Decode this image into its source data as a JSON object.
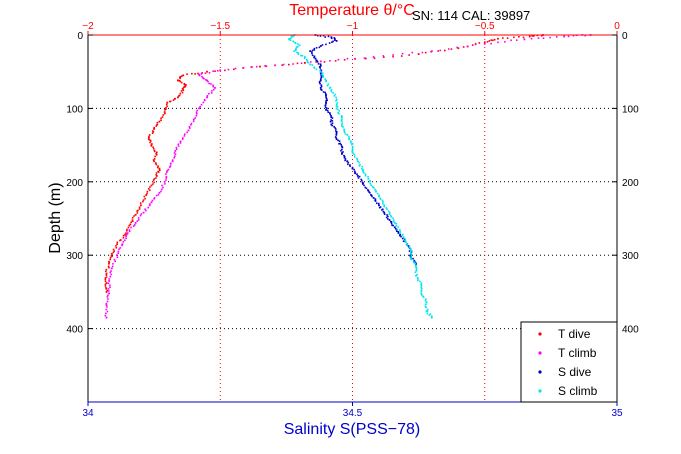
{
  "chart_data": {
    "type": "scatter",
    "header": "SN: 114  CAL: 39897",
    "top_axis": {
      "label": "Temperature θ/°C",
      "range": [
        -2,
        0
      ],
      "ticks": [
        -2,
        -1.5,
        -1,
        -0.5,
        0
      ],
      "tick_labels": [
        "−2",
        "−1.5",
        "−1",
        "−0.5",
        "0"
      ],
      "color": "#ff0000"
    },
    "bottom_axis": {
      "label": "Salinity S(PSS−78)",
      "range": [
        34,
        35
      ],
      "ticks": [
        34,
        34.5,
        35
      ],
      "tick_labels": [
        "34",
        "34.5",
        "35"
      ],
      "color": "#0000cc"
    },
    "y_axis": {
      "label": "Depth (m)",
      "range": [
        0,
        500
      ],
      "ticks": [
        0,
        100,
        200,
        300,
        400
      ],
      "tick_labels": [
        "0",
        "100",
        "200",
        "300",
        "400"
      ],
      "reversed": true
    },
    "grid": true,
    "legend_position": "bottom-right",
    "series": [
      {
        "name": "T dive",
        "axis": "temperature",
        "color": "#ff0000",
        "points": [
          [
            -0.28,
            0
          ],
          [
            -0.33,
            2
          ],
          [
            -0.45,
            5
          ],
          [
            -0.5,
            10
          ],
          [
            -0.6,
            18
          ],
          [
            -0.75,
            26
          ],
          [
            -0.95,
            32
          ],
          [
            -1.18,
            38
          ],
          [
            -1.35,
            43
          ],
          [
            -1.55,
            50
          ],
          [
            -1.64,
            55
          ],
          [
            -1.66,
            62
          ],
          [
            -1.63,
            68
          ],
          [
            -1.64,
            75
          ],
          [
            -1.66,
            85
          ],
          [
            -1.7,
            92
          ],
          [
            -1.71,
            105
          ],
          [
            -1.73,
            118
          ],
          [
            -1.75,
            128
          ],
          [
            -1.77,
            140
          ],
          [
            -1.76,
            150
          ],
          [
            -1.74,
            160
          ],
          [
            -1.75,
            172
          ],
          [
            -1.73,
            182
          ],
          [
            -1.74,
            192
          ],
          [
            -1.76,
            205
          ],
          [
            -1.78,
            218
          ],
          [
            -1.8,
            232
          ],
          [
            -1.82,
            245
          ],
          [
            -1.84,
            258
          ],
          [
            -1.86,
            272
          ],
          [
            -1.89,
            285
          ],
          [
            -1.91,
            298
          ],
          [
            -1.92,
            310
          ],
          [
            -1.93,
            325
          ],
          [
            -1.93,
            338
          ],
          [
            -1.93,
            350
          ]
        ]
      },
      {
        "name": "T climb",
        "axis": "temperature",
        "color": "#ff00ff",
        "points": [
          [
            -0.1,
            0
          ],
          [
            -0.2,
            2
          ],
          [
            -0.35,
            6
          ],
          [
            -0.5,
            12
          ],
          [
            -0.7,
            22
          ],
          [
            -0.92,
            30
          ],
          [
            -1.12,
            36
          ],
          [
            -1.33,
            42
          ],
          [
            -1.5,
            48
          ],
          [
            -1.58,
            54
          ],
          [
            -1.55,
            62
          ],
          [
            -1.52,
            72
          ],
          [
            -1.55,
            85
          ],
          [
            -1.58,
            100
          ],
          [
            -1.6,
            115
          ],
          [
            -1.62,
            130
          ],
          [
            -1.65,
            145
          ],
          [
            -1.67,
            158
          ],
          [
            -1.68,
            172
          ],
          [
            -1.7,
            185
          ],
          [
            -1.71,
            200
          ],
          [
            -1.73,
            215
          ],
          [
            -1.76,
            228
          ],
          [
            -1.79,
            242
          ],
          [
            -1.82,
            256
          ],
          [
            -1.85,
            270
          ],
          [
            -1.87,
            285
          ],
          [
            -1.89,
            300
          ],
          [
            -1.91,
            318
          ],
          [
            -1.92,
            335
          ],
          [
            -1.92,
            352
          ],
          [
            -1.93,
            368
          ],
          [
            -1.93,
            385
          ]
        ]
      },
      {
        "name": "S dive",
        "axis": "salinity",
        "color": "#0000cc",
        "points": [
          [
            34.43,
            0
          ],
          [
            34.46,
            3
          ],
          [
            34.47,
            8
          ],
          [
            34.44,
            15
          ],
          [
            34.42,
            22
          ],
          [
            34.43,
            32
          ],
          [
            34.44,
            42
          ],
          [
            34.44,
            52
          ],
          [
            34.44,
            62
          ],
          [
            34.44,
            72
          ],
          [
            34.45,
            82
          ],
          [
            34.45,
            92
          ],
          [
            34.45,
            102
          ],
          [
            34.46,
            112
          ],
          [
            34.46,
            122
          ],
          [
            34.47,
            132
          ],
          [
            34.47,
            142
          ],
          [
            34.48,
            152
          ],
          [
            34.48,
            162
          ],
          [
            34.49,
            172
          ],
          [
            34.5,
            182
          ],
          [
            34.51,
            192
          ],
          [
            34.52,
            202
          ],
          [
            34.53,
            212
          ],
          [
            34.54,
            222
          ],
          [
            34.55,
            232
          ],
          [
            34.56,
            242
          ],
          [
            34.57,
            252
          ],
          [
            34.58,
            262
          ],
          [
            34.59,
            272
          ],
          [
            34.6,
            282
          ],
          [
            34.61,
            292
          ],
          [
            34.61,
            302
          ],
          [
            34.62,
            312
          ]
        ]
      },
      {
        "name": "S climb",
        "axis": "salinity",
        "color": "#00e5ee",
        "points": [
          [
            34.39,
            0
          ],
          [
            34.38,
            6
          ],
          [
            34.4,
            14
          ],
          [
            34.39,
            22
          ],
          [
            34.41,
            30
          ],
          [
            34.42,
            40
          ],
          [
            34.44,
            50
          ],
          [
            34.45,
            62
          ],
          [
            34.46,
            75
          ],
          [
            34.47,
            88
          ],
          [
            34.47,
            100
          ],
          [
            34.48,
            112
          ],
          [
            34.48,
            124
          ],
          [
            34.49,
            136
          ],
          [
            34.5,
            148
          ],
          [
            34.5,
            160
          ],
          [
            34.51,
            172
          ],
          [
            34.52,
            184
          ],
          [
            34.53,
            196
          ],
          [
            34.54,
            208
          ],
          [
            34.55,
            220
          ],
          [
            34.56,
            232
          ],
          [
            34.57,
            244
          ],
          [
            34.58,
            256
          ],
          [
            34.59,
            268
          ],
          [
            34.6,
            280
          ],
          [
            34.61,
            292
          ],
          [
            34.61,
            304
          ],
          [
            34.62,
            316
          ],
          [
            34.62,
            328
          ],
          [
            34.63,
            340
          ],
          [
            34.63,
            352
          ],
          [
            34.64,
            364
          ],
          [
            34.64,
            376
          ],
          [
            34.65,
            385
          ]
        ]
      }
    ]
  }
}
